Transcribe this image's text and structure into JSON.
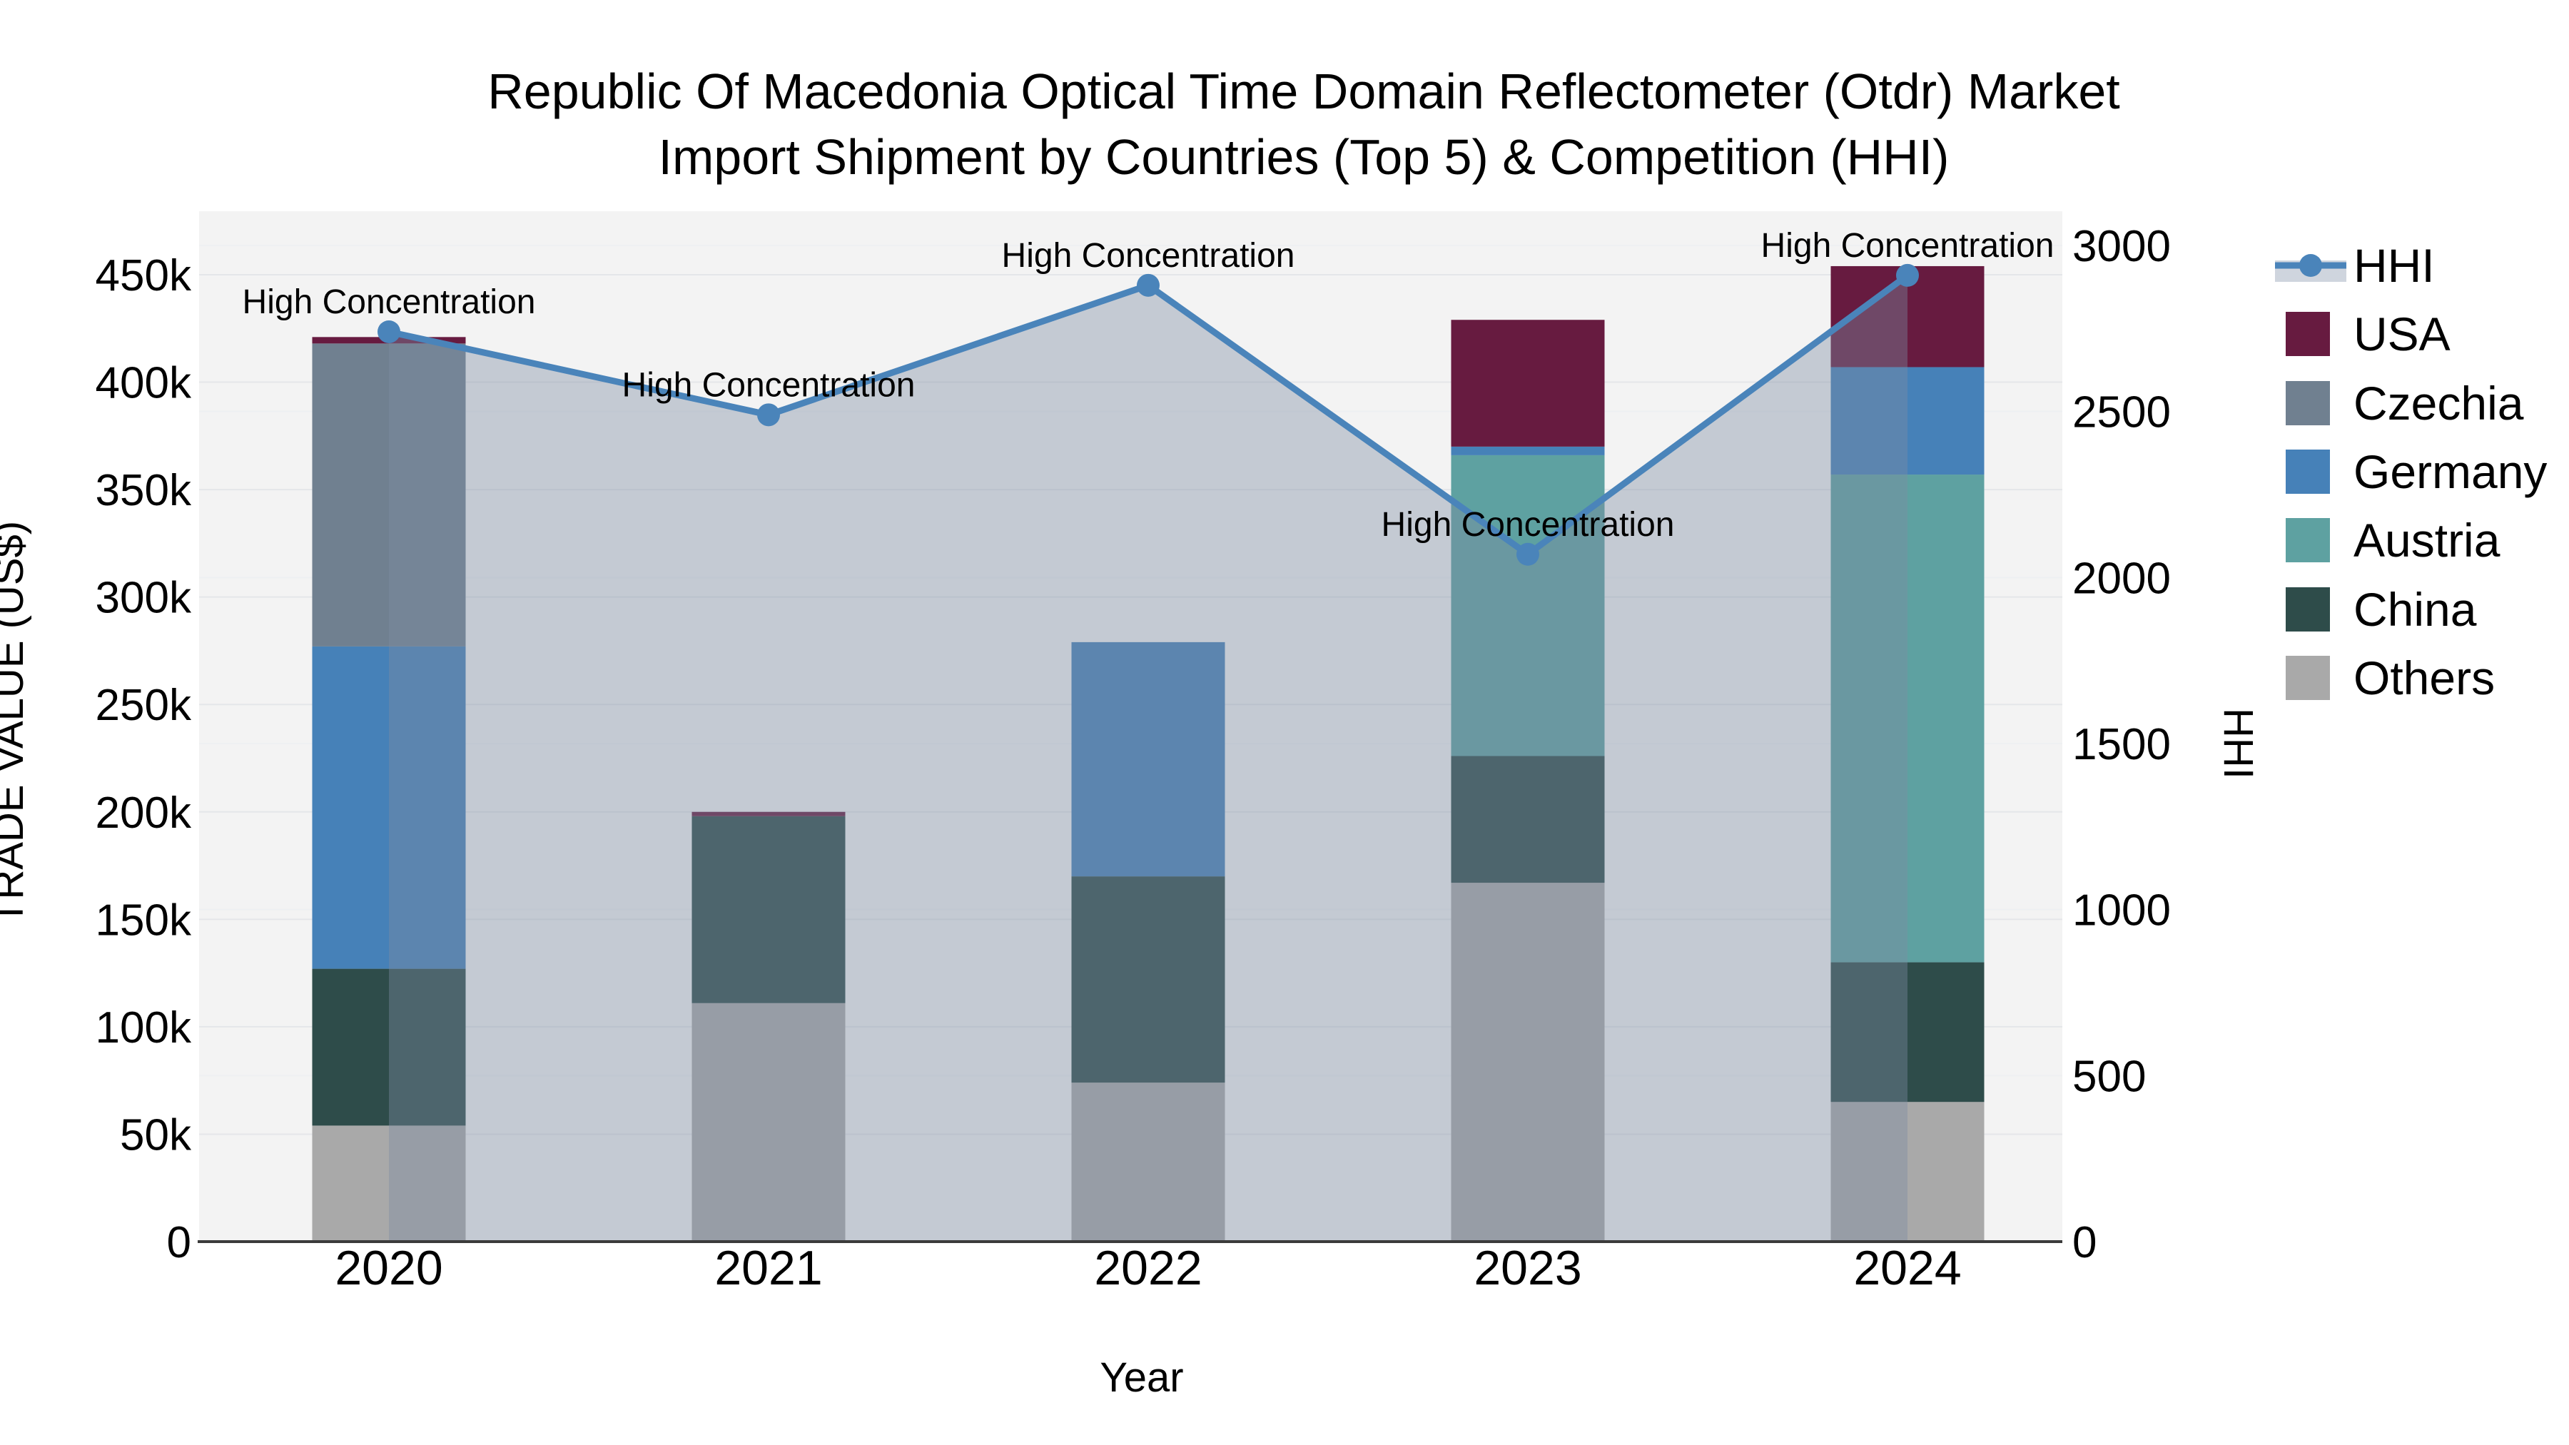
{
  "title": {
    "line1": "Republic Of Macedonia Optical Time Domain Reflectometer (Otdr) Market",
    "line2": "Import Shipment by Countries (Top 5) & Competition (HHI)"
  },
  "axes": {
    "left": {
      "title": "TRADE VALUE (US$)",
      "tick_labels": [
        "0",
        "50k",
        "100k",
        "150k",
        "200k",
        "250k",
        "300k",
        "350k",
        "400k",
        "450k"
      ],
      "tick_values": [
        0,
        50000,
        100000,
        150000,
        200000,
        250000,
        300000,
        350000,
        400000,
        450000
      ],
      "range": [
        0,
        480000
      ]
    },
    "right": {
      "title": "HHI",
      "tick_labels": [
        "0",
        "500",
        "1000",
        "1500",
        "2000",
        "2500",
        "3000"
      ],
      "tick_values": [
        0,
        500,
        1000,
        1500,
        2000,
        2500,
        3000
      ],
      "range": [
        0,
        3100
      ]
    },
    "x": {
      "title": "Year",
      "categories": [
        "2020",
        "2021",
        "2022",
        "2023",
        "2024"
      ]
    }
  },
  "legend": {
    "items": [
      {
        "label": "HHI",
        "type": "line",
        "color": "#4a84ba"
      },
      {
        "label": "USA",
        "type": "swatch",
        "color": "#671b40"
      },
      {
        "label": "Czechia",
        "type": "swatch",
        "color": "#708090"
      },
      {
        "label": "Germany",
        "type": "swatch",
        "color": "#4681b8"
      },
      {
        "label": "Austria",
        "type": "swatch",
        "color": "#5ea1a1"
      },
      {
        "label": "China",
        "type": "swatch",
        "color": "#2e4c4a"
      },
      {
        "label": "Others",
        "type": "swatch",
        "color": "#a9a9a9"
      }
    ]
  },
  "colors": {
    "hhi_line": "#4a84ba",
    "hhi_area_fill": "rgba(125,139,162,0.4)",
    "plot_background": "#f3f3f3",
    "gridline": "#e4e6e9",
    "axis_line": "#3b3b3b",
    "usa": "#671b40",
    "czechia": "#708090",
    "germany": "#4681b8",
    "austria": "#5ea1a1",
    "china": "#2e4c4a",
    "others": "#a9a9a9"
  },
  "chart_data": {
    "type": "bar",
    "subtype": "stacked bars (left axis, trade value US$) + HHI line with area fill (right axis)",
    "categories": [
      "2020",
      "2021",
      "2022",
      "2023",
      "2024"
    ],
    "stack_order_bottom_to_top": [
      "Others",
      "China",
      "Austria",
      "Germany",
      "Czechia",
      "USA"
    ],
    "series": [
      {
        "name": "Others",
        "color": "#a9a9a9",
        "values": [
          54000,
          111000,
          74000,
          167000,
          65000
        ]
      },
      {
        "name": "China",
        "color": "#2e4c4a",
        "values": [
          73000,
          87000,
          96000,
          59000,
          65000
        ]
      },
      {
        "name": "Austria",
        "color": "#5ea1a1",
        "values": [
          0,
          0,
          0,
          140000,
          227000
        ]
      },
      {
        "name": "Germany",
        "color": "#4681b8",
        "values": [
          150000,
          0,
          109000,
          4000,
          50000
        ]
      },
      {
        "name": "Czechia",
        "color": "#708090",
        "values": [
          141000,
          0,
          0,
          0,
          0
        ]
      },
      {
        "name": "USA",
        "color": "#671b40",
        "values": [
          3000,
          2000,
          0,
          59000,
          47000
        ]
      }
    ],
    "bar_totals": [
      421000,
      200000,
      279000,
      429000,
      454000
    ],
    "line_series": {
      "name": "HHI",
      "axis": "right",
      "color": "#4a84ba",
      "values": [
        2740,
        2490,
        2880,
        2070,
        2910
      ]
    },
    "annotations": [
      {
        "category": "2020",
        "text": "High Concentration"
      },
      {
        "category": "2021",
        "text": "High Concentration"
      },
      {
        "category": "2022",
        "text": "High Concentration"
      },
      {
        "category": "2023",
        "text": "High Concentration"
      },
      {
        "category": "2024",
        "text": "High Concentration"
      }
    ],
    "title": "Republic Of Macedonia Optical Time Domain Reflectometer (Otdr) Market Import Shipment by Countries (Top 5) & Competition (HHI)",
    "xlabel": "Year",
    "ylabel_left": "TRADE VALUE (US$)",
    "ylabel_right": "HHI",
    "ylim_left": [
      0,
      480000
    ],
    "ylim_right": [
      0,
      3100
    ],
    "grid": true,
    "legend_position": "right"
  }
}
